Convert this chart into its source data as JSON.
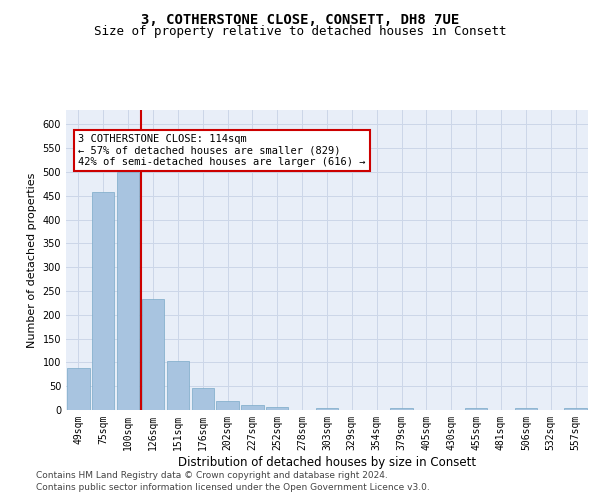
{
  "title": "3, COTHERSTONE CLOSE, CONSETT, DH8 7UE",
  "subtitle": "Size of property relative to detached houses in Consett",
  "xlabel": "Distribution of detached houses by size in Consett",
  "ylabel": "Number of detached properties",
  "categories": [
    "49sqm",
    "75sqm",
    "100sqm",
    "126sqm",
    "151sqm",
    "176sqm",
    "202sqm",
    "227sqm",
    "252sqm",
    "278sqm",
    "303sqm",
    "329sqm",
    "354sqm",
    "379sqm",
    "405sqm",
    "430sqm",
    "455sqm",
    "481sqm",
    "506sqm",
    "532sqm",
    "557sqm"
  ],
  "values": [
    88,
    457,
    500,
    233,
    103,
    47,
    19,
    11,
    7,
    0,
    5,
    0,
    0,
    5,
    0,
    0,
    5,
    0,
    5,
    0,
    5
  ],
  "bar_color": "#a8c4e0",
  "bar_edge_color": "#7aaac8",
  "grid_color": "#ccd6e8",
  "background_color": "#e8eef8",
  "vline_x": 2.5,
  "vline_color": "#cc0000",
  "annotation_text": "3 COTHERSTONE CLOSE: 114sqm\n← 57% of detached houses are smaller (829)\n42% of semi-detached houses are larger (616) →",
  "annotation_box_color": "#ffffff",
  "annotation_box_edge": "#cc0000",
  "ylim": [
    0,
    630
  ],
  "yticks": [
    0,
    50,
    100,
    150,
    200,
    250,
    300,
    350,
    400,
    450,
    500,
    550,
    600
  ],
  "footer_line1": "Contains HM Land Registry data © Crown copyright and database right 2024.",
  "footer_line2": "Contains public sector information licensed under the Open Government Licence v3.0.",
  "title_fontsize": 10,
  "subtitle_fontsize": 9,
  "xlabel_fontsize": 8.5,
  "ylabel_fontsize": 8,
  "tick_fontsize": 7,
  "annotation_fontsize": 7.5,
  "footer_fontsize": 6.5
}
